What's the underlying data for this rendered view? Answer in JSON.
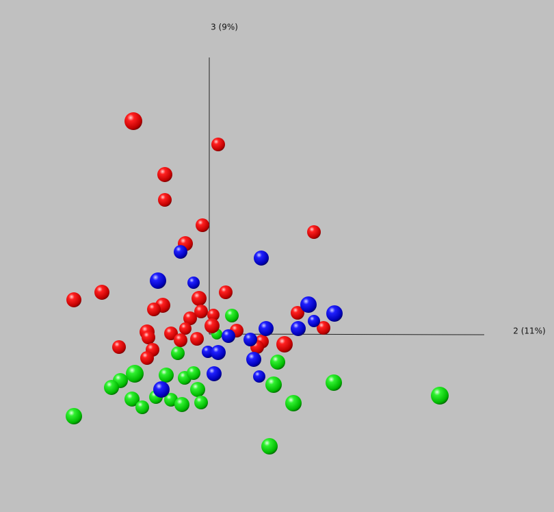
{
  "axes": {
    "vertical_label": "3 (9%)",
    "horizontal_label": "2 (11%)"
  }
}
